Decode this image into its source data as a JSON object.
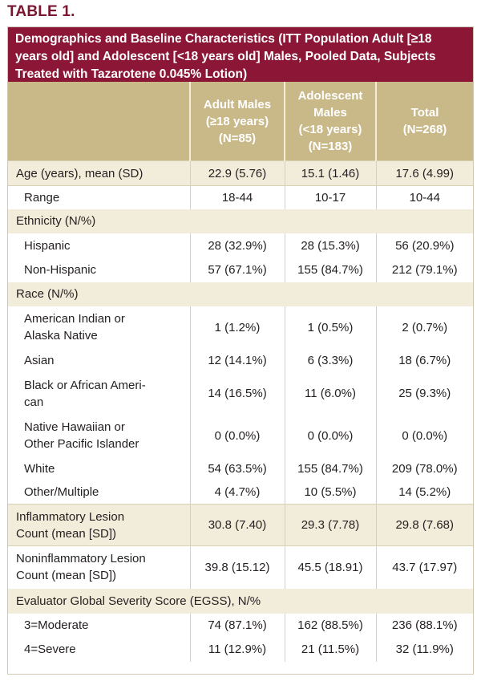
{
  "table_label": "TABLE 1.",
  "caption": "Demographics and Baseline Characteristics (ITT Population Adult [≥18 years old] and Adolescent [<18 years old] Males, Pooled Data, Subjects Treated with Tazarotene 0.045% Lotion)",
  "columns": [
    {
      "lines": [
        "Adult Males",
        "(≥18 years)",
        "(N=85)"
      ]
    },
    {
      "lines": [
        "Adolescent",
        "Males",
        "(<18 years)",
        "(N=183)"
      ]
    },
    {
      "lines": [
        "Total",
        "(N=268)"
      ]
    }
  ],
  "rows": {
    "age": {
      "label": "Age (years), mean (SD)",
      "values": [
        "22.9 (5.76)",
        "15.1 (1.46)",
        "17.6 (4.99)"
      ]
    },
    "range": {
      "label": "Range",
      "values": [
        "18-44",
        "10-17",
        "10-44"
      ]
    },
    "ethnicity": {
      "label": "Ethnicity (N/%)"
    },
    "hispanic": {
      "label": "Hispanic",
      "values": [
        "28 (32.9%)",
        "28 (15.3%)",
        "56 (20.9%)"
      ]
    },
    "non_hispanic": {
      "label": "Non-Hispanic",
      "values": [
        "57 (67.1%)",
        "155 (84.7%)",
        "212 (79.1%)"
      ]
    },
    "race": {
      "label": "Race (N/%)"
    },
    "american_indian": {
      "lines": [
        "American Indian or",
        "Alaska Native"
      ],
      "values": [
        "1 (1.2%)",
        "1 (0.5%)",
        "2 (0.7%)"
      ]
    },
    "asian": {
      "label": "Asian",
      "values": [
        "12 (14.1%)",
        "6 (3.3%)",
        "18 (6.7%)"
      ]
    },
    "black": {
      "lines": [
        "Black or African Ameri-",
        "can"
      ],
      "values": [
        "14 (16.5%)",
        "11 (6.0%)",
        "25 (9.3%)"
      ]
    },
    "hawaiian": {
      "lines": [
        "Native Hawaiian or",
        "Other Pacific Islander"
      ],
      "values": [
        "0 (0.0%)",
        "0 (0.0%)",
        "0 (0.0%)"
      ]
    },
    "white": {
      "label": "White",
      "values": [
        "54 (63.5%)",
        "155 (84.7%)",
        "209 (78.0%)"
      ]
    },
    "other": {
      "label": "Other/Multiple",
      "values": [
        "4 (4.7%)",
        "10 (5.5%)",
        "14 (5.2%)"
      ]
    },
    "inflammatory": {
      "lines": [
        "Inflammatory Lesion",
        "Count  (mean [SD])"
      ],
      "values": [
        "30.8 (7.40)",
        "29.3 (7.78)",
        "29.8 (7.68)"
      ]
    },
    "noninflammatory": {
      "lines": [
        "Noninflammatory Lesion",
        "Count (mean [SD])"
      ],
      "values": [
        "39.8 (15.12)",
        "45.5 (18.91)",
        "43.7 (17.97)"
      ]
    },
    "egss": {
      "label": "Evaluator Global Severity Score (EGSS), N/%"
    },
    "moderate": {
      "label": "3=Moderate",
      "values": [
        "74 (87.1%)",
        "162 (88.5%)",
        "236 (88.1%)"
      ]
    },
    "severe": {
      "label": "4=Severe",
      "values": [
        "11 (12.9%)",
        "21 (11.5%)",
        "32 (11.9%)"
      ]
    }
  }
}
